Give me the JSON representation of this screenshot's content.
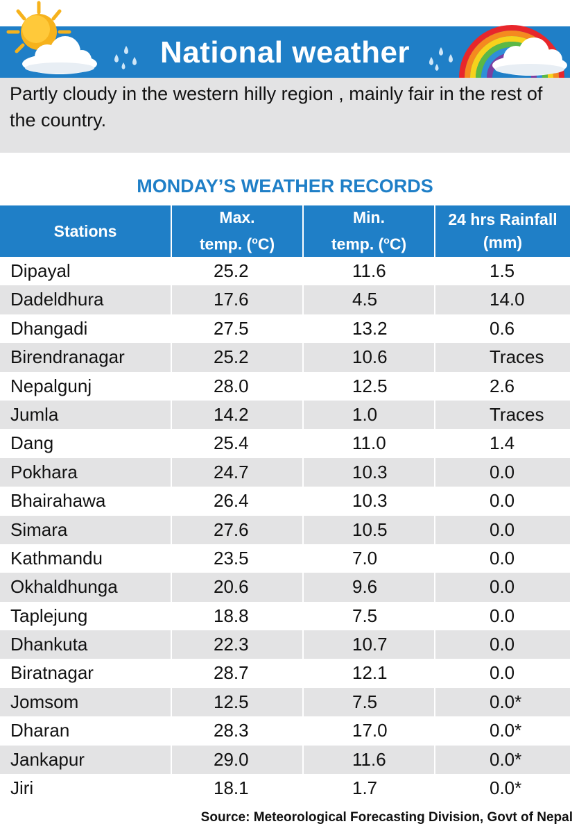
{
  "header": {
    "title": "National weather",
    "forecast": "Partly cloudy in the western hilly region , mainly fair in the rest of the country."
  },
  "records": {
    "title": "MONDAY’S WEATHER RECORDS",
    "columns": {
      "stations": "Stations",
      "max_line1": "Max.",
      "max_line2": "temp. (",
      "min_line1": "Min.",
      "min_line2": "temp. (",
      "deg_sup": "o",
      "deg_unit": "C)",
      "rain_line1": "24 hrs Rainfall",
      "rain_line2": "(mm)"
    },
    "rows": [
      {
        "station": "Dipayal",
        "max": "25.2",
        "min": "11.6",
        "rain": "1.5"
      },
      {
        "station": "Dadeldhura",
        "max": "17.6",
        "min": "4.5",
        "rain": "14.0"
      },
      {
        "station": "Dhangadi",
        "max": "27.5",
        "min": "13.2",
        "rain": "0.6"
      },
      {
        "station": "Birendranagar",
        "max": "25.2",
        "min": "10.6",
        "rain": "Traces"
      },
      {
        "station": "Nepalgunj",
        "max": "28.0",
        "min": "12.5",
        "rain": "2.6"
      },
      {
        "station": "Jumla",
        "max": "14.2",
        "min": "1.0",
        "rain": "Traces"
      },
      {
        "station": "Dang",
        "max": "25.4",
        "min": "11.0",
        "rain": "1.4"
      },
      {
        "station": "Pokhara",
        "max": "24.7",
        "min": "10.3",
        "rain": "0.0"
      },
      {
        "station": "Bhairahawa",
        "max": "26.4",
        "min": "10.3",
        "rain": "0.0"
      },
      {
        "station": "Simara",
        "max": "27.6",
        "min": "10.5",
        "rain": "0.0"
      },
      {
        "station": "Kathmandu",
        "max": "23.5",
        "min": "7.0",
        "rain": "0.0"
      },
      {
        "station": "Okhaldhunga",
        "max": "20.6",
        "min": "9.6",
        "rain": "0.0"
      },
      {
        "station": "Taplejung",
        "max": "18.8",
        "min": "7.5",
        "rain": "0.0"
      },
      {
        "station": "Dhankuta",
        "max": "22.3",
        "min": "10.7",
        "rain": "0.0"
      },
      {
        "station": "Biratnagar",
        "max": "28.7",
        "min": "12.1",
        "rain": "0.0"
      },
      {
        "station": "Jomsom",
        "max": "12.5",
        "min": "7.5",
        "rain": "0.0*"
      },
      {
        "station": "Dharan",
        "max": "28.3",
        "min": "17.0",
        "rain": "0.0*"
      },
      {
        "station": "Jankapur",
        "max": "29.0",
        "min": "11.6",
        "rain": "0.0*"
      },
      {
        "station": "Jiri",
        "max": "18.1",
        "min": "1.7",
        "rain": "0.0*"
      }
    ]
  },
  "footer": {
    "source": "Source: Meteorological Forecasting Division, Govt of Nepal"
  },
  "icons": [
    "sun-icon",
    "cloud-icon",
    "raindrops-icon",
    "rainbow-icon"
  ],
  "colors": {
    "accent": "#1f7fc7",
    "stripe": "#e3e3e4",
    "sun": "#f6b21c"
  }
}
